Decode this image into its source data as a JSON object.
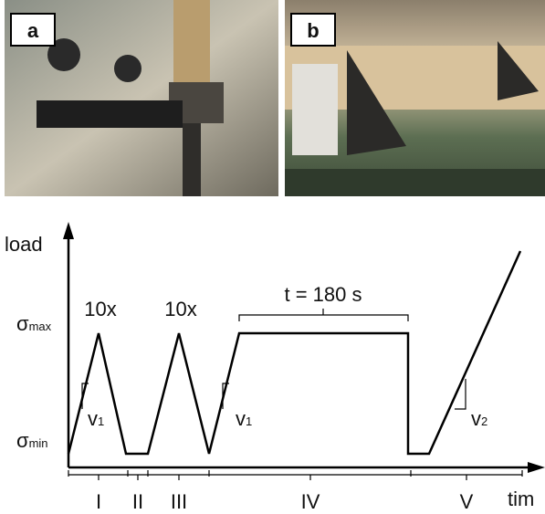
{
  "panels": {
    "a": "a",
    "b": "b"
  },
  "diagram": {
    "y_axis_label": "load",
    "x_axis_label": "tim",
    "levels": {
      "max": {
        "symbol": "σ",
        "sub": "max"
      },
      "min": {
        "symbol": "σ",
        "sub": "min"
      }
    },
    "annotations": {
      "cycles_1": "10x",
      "cycles_2": "10x",
      "hold": "t = 180 s"
    },
    "rates": [
      {
        "symbol": "v",
        "sub": "1"
      },
      {
        "symbol": "v",
        "sub": "1"
      },
      {
        "symbol": "v",
        "sub": "2"
      }
    ],
    "phases": [
      "I",
      "II",
      "III",
      "IV",
      "V"
    ]
  }
}
